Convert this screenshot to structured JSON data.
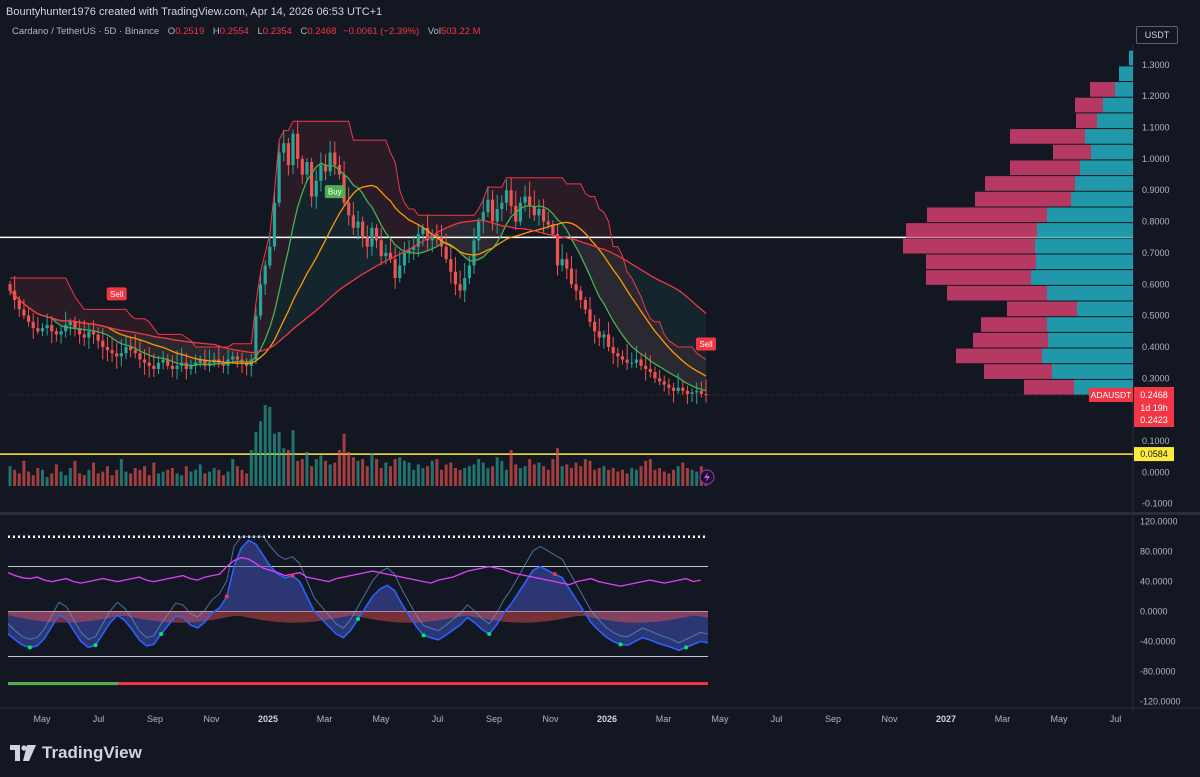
{
  "header": {
    "created_line": "Bountyhunter1976 created with TradingView.com, Apr 14, 2026 06:53 UTC+1"
  },
  "legend": {
    "symbol": "Cardano / TetherUS · 5D · Binance",
    "o_label": "O",
    "o_value": "0.2519",
    "h_label": "H",
    "h_value": "0.2554",
    "l_label": "L",
    "l_value": "0.2354",
    "c_label": "C",
    "c_value": "0.2468",
    "change": "−0.0061 (−2.39%)",
    "vol_label": "Vol",
    "vol_value": "503.22 M"
  },
  "currency_button": "USDT",
  "brand": {
    "name": "TradingView"
  },
  "colors": {
    "background": "#131722",
    "up": "#26a69a",
    "down": "#ef5350",
    "axis_text": "#b2b5be",
    "profile_up": "#22a6b8",
    "profile_down": "#d43f6e",
    "yellow_line": "#ffeb3b"
  },
  "chart_data": [
    {
      "type": "candlestick",
      "ylim": [
        -0.12,
        1.36
      ],
      "price_ticks": [
        "1.3000",
        "1.2000",
        "1.1000",
        "1.0000",
        "0.9000",
        "0.8000",
        "0.7000",
        "0.6000",
        "0.5000",
        "0.4000",
        "0.3000",
        "0.2000",
        "0.1000",
        "0.0000",
        "-0.1000"
      ],
      "time_ticks": [
        {
          "label": "May",
          "bold": false
        },
        {
          "label": "Jul",
          "bold": false
        },
        {
          "label": "Sep",
          "bold": false
        },
        {
          "label": "Nov",
          "bold": false
        },
        {
          "label": "2025",
          "bold": true
        },
        {
          "label": "Mar",
          "bold": false
        },
        {
          "label": "May",
          "bold": false
        },
        {
          "label": "Jul",
          "bold": false
        },
        {
          "label": "Sep",
          "bold": false
        },
        {
          "label": "Nov",
          "bold": false
        },
        {
          "label": "2026",
          "bold": true
        },
        {
          "label": "Mar",
          "bold": false
        },
        {
          "label": "May",
          "bold": false
        },
        {
          "label": "Jul",
          "bold": false
        },
        {
          "label": "Sep",
          "bold": false
        },
        {
          "label": "Nov",
          "bold": false
        },
        {
          "label": "2027",
          "bold": true
        },
        {
          "label": "Mar",
          "bold": false
        },
        {
          "label": "May",
          "bold": false
        },
        {
          "label": "Jul",
          "bold": false
        }
      ],
      "close_series": [
        0.58,
        0.55,
        0.52,
        0.5,
        0.48,
        0.46,
        0.45,
        0.46,
        0.47,
        0.45,
        0.44,
        0.45,
        0.47,
        0.48,
        0.46,
        0.44,
        0.43,
        0.45,
        0.44,
        0.42,
        0.4,
        0.39,
        0.38,
        0.37,
        0.38,
        0.4,
        0.39,
        0.38,
        0.36,
        0.35,
        0.34,
        0.33,
        0.35,
        0.36,
        0.34,
        0.33,
        0.34,
        0.35,
        0.33,
        0.34,
        0.35,
        0.36,
        0.34,
        0.35,
        0.36,
        0.35,
        0.34,
        0.36,
        0.37,
        0.36,
        0.35,
        0.34,
        0.36,
        0.5,
        0.6,
        0.66,
        0.72,
        0.86,
        1.02,
        1.05,
        0.98,
        1.08,
        1.0,
        0.95,
        0.99,
        0.88,
        0.93,
        0.98,
        0.96,
        1.02,
        0.98,
        0.95,
        0.86,
        0.82,
        0.78,
        0.8,
        0.75,
        0.72,
        0.78,
        0.74,
        0.69,
        0.7,
        0.68,
        0.62,
        0.66,
        0.7,
        0.71,
        0.72,
        0.76,
        0.78,
        0.74,
        0.76,
        0.75,
        0.72,
        0.68,
        0.64,
        0.6,
        0.58,
        0.62,
        0.66,
        0.74,
        0.8,
        0.83,
        0.87,
        0.8,
        0.84,
        0.86,
        0.9,
        0.85,
        0.8,
        0.86,
        0.88,
        0.85,
        0.82,
        0.84,
        0.8,
        0.79,
        0.76,
        0.66,
        0.68,
        0.65,
        0.6,
        0.58,
        0.55,
        0.52,
        0.48,
        0.45,
        0.43,
        0.44,
        0.4,
        0.38,
        0.37,
        0.36,
        0.35,
        0.35,
        0.36,
        0.34,
        0.33,
        0.32,
        0.3,
        0.29,
        0.28,
        0.27,
        0.26,
        0.27,
        0.26,
        0.25,
        0.255,
        0.26,
        0.25,
        0.2468
      ],
      "last_price": {
        "label": "ADAUSDT",
        "value": "0.2468",
        "countdown": "1d 19h",
        "second_value": "0.2423"
      },
      "horizontal_lines": [
        {
          "value": 0.7497,
          "color": "#ffffff"
        },
        {
          "value": 0.0584,
          "color": "#ffeb3b",
          "label": "0.0584"
        }
      ],
      "signals": [
        {
          "type": "Sell",
          "index": 23
        },
        {
          "type": "Buy",
          "index": 70
        },
        {
          "type": "Sell",
          "index": 182
        }
      ],
      "volume_profile": {
        "row_values": [
          1.32,
          1.27,
          1.22,
          1.17,
          1.12,
          1.07,
          1.02,
          0.97,
          0.92,
          0.87,
          0.82,
          0.77,
          0.72,
          0.67,
          0.62,
          0.57,
          0.52,
          0.47,
          0.42,
          0.37,
          0.32,
          0.27
        ],
        "up_volume": [
          4,
          14,
          18,
          30,
          36,
          48,
          42,
          53,
          58,
          62,
          86,
          96,
          98,
          97,
          102,
          86,
          56,
          86,
          85,
          91,
          81,
          59
        ],
        "down_volume": [
          0,
          0,
          25,
          28,
          21,
          75,
          38,
          70,
          90,
          96,
          120,
          131,
          132,
          110,
          105,
          100,
          70,
          66,
          75,
          86,
          68,
          50
        ]
      },
      "volume_series": [
        22,
        18,
        14,
        28,
        16,
        12,
        20,
        18,
        10,
        14,
        24,
        16,
        12,
        20,
        28,
        14,
        12,
        18,
        26,
        14,
        16,
        22,
        12,
        18,
        30,
        16,
        14,
        20,
        18,
        22,
        12,
        26,
        14,
        16,
        18,
        20,
        14,
        12,
        22,
        16,
        18,
        24,
        14,
        16,
        20,
        18,
        12,
        16,
        30,
        22,
        18,
        14,
        40,
        60,
        72,
        90,
        88,
        58,
        60,
        42,
        40,
        62,
        28,
        30,
        38,
        22,
        30,
        34,
        28,
        24,
        26,
        40,
        58,
        38,
        32,
        28,
        30,
        22,
        36,
        30,
        20,
        26,
        22,
        30,
        32,
        28,
        26,
        18,
        24,
        20,
        22,
        28,
        30,
        18,
        24,
        26,
        20,
        18,
        20,
        22,
        24,
        30,
        26,
        20,
        22,
        32,
        28,
        18,
        40,
        24,
        20,
        22,
        30,
        24,
        26,
        22,
        18,
        30,
        42,
        22,
        24,
        20,
        26,
        22,
        30,
        28,
        18,
        20,
        22,
        18,
        20,
        16,
        18,
        14,
        20,
        18,
        22,
        28,
        30,
        18,
        20,
        16,
        14,
        18,
        22,
        26,
        20,
        18,
        16,
        22,
        14
      ]
    },
    {
      "type": "oscillator",
      "ylim": [
        -125,
        125
      ],
      "ticks": [
        "120.0000",
        "80.0000",
        "40.0000",
        "0.0000",
        "-40.0000",
        "-80.0000",
        "-120.0000"
      ],
      "levels": [
        100,
        60,
        0,
        -60
      ],
      "blue_wave": [
        -30,
        -38,
        -45,
        -48,
        -46,
        -36,
        -20,
        -5,
        -10,
        -25,
        -40,
        -48,
        -45,
        -30,
        -15,
        -5,
        -12,
        -24,
        -38,
        -46,
        -44,
        -30,
        -18,
        -6,
        -8,
        -18,
        -22,
        -14,
        -2,
        5,
        20,
        60,
        85,
        95,
        90,
        75,
        60,
        50,
        45,
        48,
        40,
        20,
        0,
        -10,
        -20,
        -30,
        -35,
        -25,
        -10,
        5,
        20,
        30,
        35,
        28,
        10,
        -5,
        -20,
        -32,
        -35,
        -38,
        -32,
        -25,
        -18,
        -8,
        -15,
        -24,
        -30,
        -18,
        -2,
        10,
        25,
        40,
        55,
        60,
        55,
        50,
        45,
        30,
        15,
        0,
        -15,
        -25,
        -34,
        -40,
        -44,
        -45,
        -40,
        -35,
        -38,
        -42,
        -45,
        -48,
        -52,
        -48,
        -44,
        -40,
        -42
      ],
      "magenta_line": [
        52,
        48,
        45,
        44,
        46,
        42,
        40,
        42,
        44,
        40,
        38,
        40,
        42,
        44,
        42,
        40,
        42,
        44,
        46,
        42,
        40,
        42,
        44,
        46,
        48,
        44,
        42,
        46,
        48,
        50,
        60,
        68,
        72,
        70,
        64,
        58,
        55,
        52,
        48,
        50,
        52,
        46,
        44,
        42,
        40,
        44,
        46,
        48,
        50,
        52,
        54,
        52,
        50,
        48,
        46,
        44,
        42,
        40,
        38,
        42,
        44,
        46,
        50,
        54,
        56,
        58,
        60,
        58,
        56,
        52,
        50,
        48,
        46,
        44,
        42,
        40,
        38,
        36,
        40,
        42,
        44,
        40,
        38,
        36,
        34,
        36,
        38,
        40,
        42,
        40,
        38,
        40,
        42,
        44,
        40,
        42
      ]
    }
  ]
}
